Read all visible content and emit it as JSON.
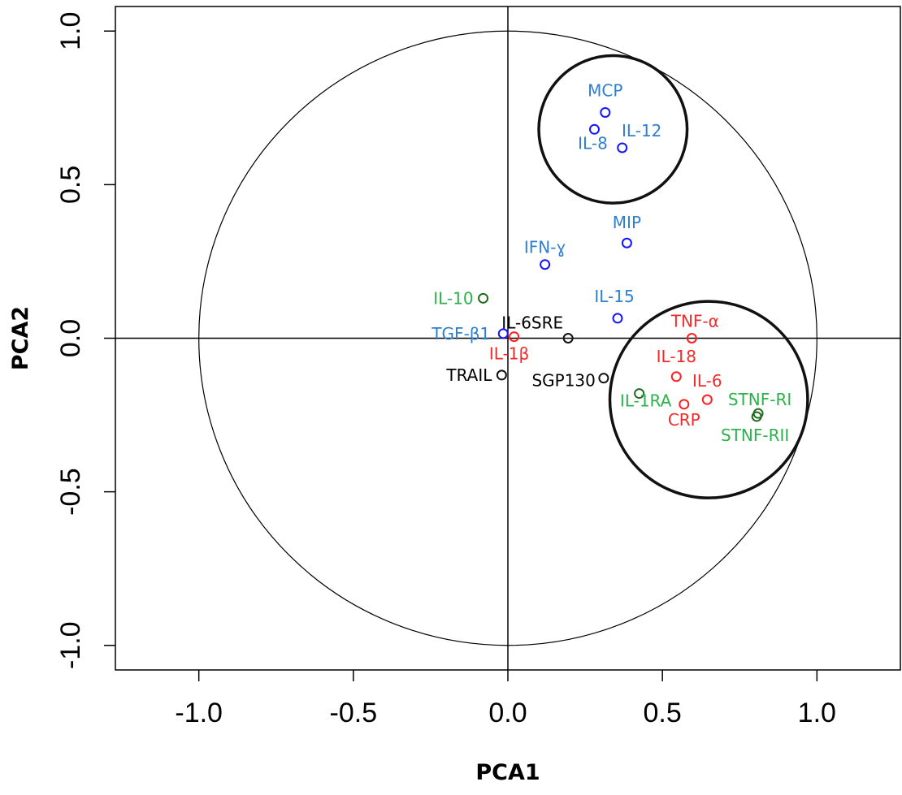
{
  "chart_data": {
    "type": "scatter",
    "title": "",
    "xlabel": "PCA1",
    "ylabel": "PCA2",
    "xlim": [
      -1.27,
      1.27
    ],
    "ylim": [
      -1.08,
      1.08
    ],
    "xticks": [
      -1.0,
      -0.5,
      0.0,
      0.5,
      1.0
    ],
    "yticks": [
      -1.0,
      -0.5,
      0.0,
      0.5,
      1.0
    ],
    "xtick_labels": [
      "-1.0",
      "-0.5",
      "0.0",
      "0.5",
      "1.0"
    ],
    "ytick_labels": [
      "-1.0",
      "-0.5",
      "0.0",
      "0.5",
      "1.0"
    ],
    "grid": false,
    "reference_lines": {
      "x": 0,
      "y": 0
    },
    "unit_circle_radius": 1.0,
    "highlight_circles": [
      {
        "cx": 0.34,
        "cy": 0.68,
        "r": 0.24
      },
      {
        "cx": 0.65,
        "cy": -0.2,
        "r": 0.32
      }
    ],
    "colors": {
      "blue": "#2f7fd1",
      "red": "#f22a2a",
      "green": "#2bb24a",
      "black": "#000000"
    },
    "marker_colors": {
      "blue": "#1414ff",
      "red": "#ff1f1f",
      "green": "#1e6b1e",
      "black": "#111111"
    },
    "points": [
      {
        "label": "MCP",
        "x": 0.315,
        "y": 0.735,
        "color": "blue"
      },
      {
        "label": "IL-8",
        "x": 0.28,
        "y": 0.68,
        "color": "blue"
      },
      {
        "label": "IL-12",
        "x": 0.37,
        "y": 0.62,
        "color": "blue"
      },
      {
        "label": "MIP",
        "x": 0.385,
        "y": 0.31,
        "color": "blue"
      },
      {
        "label": "IFN-ɣ",
        "x": 0.12,
        "y": 0.24,
        "color": "blue"
      },
      {
        "label": "IL-15",
        "x": 0.355,
        "y": 0.065,
        "color": "blue"
      },
      {
        "label": "TGF-β1",
        "x": -0.015,
        "y": 0.015,
        "color": "blue"
      },
      {
        "label": "IL-10",
        "x": -0.08,
        "y": 0.13,
        "color": "green"
      },
      {
        "label": "IL-1β",
        "x": 0.02,
        "y": 0.005,
        "color": "red"
      },
      {
        "label": "IL-6SRE",
        "x": 0.195,
        "y": 0.0,
        "color": "black"
      },
      {
        "label": "TRAIL",
        "x": -0.02,
        "y": -0.12,
        "color": "black"
      },
      {
        "label": "SGP130",
        "x": 0.31,
        "y": -0.13,
        "color": "black"
      },
      {
        "label": "TNF-α",
        "x": 0.595,
        "y": 0.0,
        "color": "red"
      },
      {
        "label": "IL-18",
        "x": 0.545,
        "y": -0.125,
        "color": "red"
      },
      {
        "label": "IL-6",
        "x": 0.645,
        "y": -0.2,
        "color": "red"
      },
      {
        "label": "CRP",
        "x": 0.57,
        "y": -0.215,
        "color": "red"
      },
      {
        "label": "IL-1RA",
        "x": 0.425,
        "y": -0.18,
        "color": "green"
      },
      {
        "label": "STNF-RI",
        "x": 0.81,
        "y": -0.245,
        "color": "green"
      },
      {
        "label": "STNF-RII",
        "x": 0.805,
        "y": -0.255,
        "color": "green"
      }
    ]
  }
}
